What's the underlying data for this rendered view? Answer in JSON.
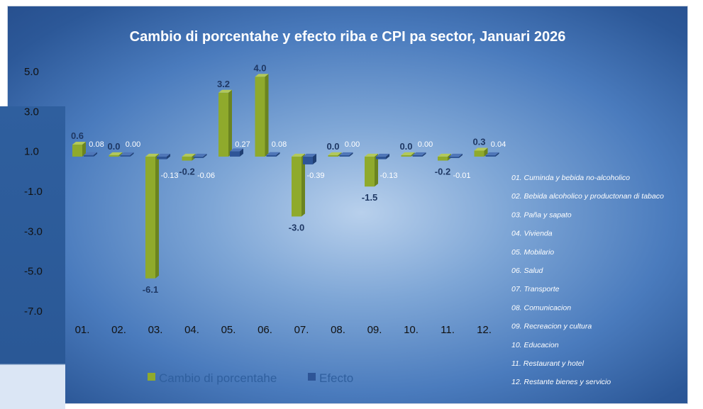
{
  "chart_data": {
    "type": "bar",
    "title": "Cambio di porcentahe y efecto riba e CPI pa sector, Januari 2026",
    "categories": [
      "01.",
      "02.",
      "03.",
      "04.",
      "05.",
      "06.",
      "07.",
      "08.",
      "09.",
      "10.",
      "11.",
      "12."
    ],
    "series": [
      {
        "name": "Cambio di porcentahe",
        "color": "#8faa2c",
        "values": [
          0.6,
          0.0,
          -6.1,
          -0.2,
          3.2,
          4.0,
          -3.0,
          0.0,
          -1.5,
          0.0,
          -0.2,
          0.3
        ],
        "labels": [
          "0.6",
          "0.0",
          "-6.1",
          "-0.2",
          "3.2",
          "4.0",
          "-3.0",
          "0.0",
          "-1.5",
          "0.0",
          "-0.2",
          "0.3"
        ]
      },
      {
        "name": "Efecto",
        "color": "#2e5597",
        "values": [
          0.08,
          0.0,
          -0.13,
          -0.06,
          0.27,
          0.08,
          -0.39,
          0.0,
          -0.13,
          0.0,
          -0.01,
          0.04
        ],
        "labels": [
          "0.08",
          "0.00",
          "-0.13",
          "-0.06",
          "0.27",
          "0.08",
          "-0.39",
          "0.00",
          "-0.13",
          "0.00",
          "-0.01",
          "0.04"
        ]
      }
    ],
    "yticks": [
      "5.0",
      "3.0",
      "1.0",
      "-1.0",
      "-3.0",
      "-5.0",
      "-7.0"
    ],
    "ylim": [
      -7.0,
      5.0
    ],
    "grid": false,
    "legend": "bottom",
    "sector_legend": [
      "01. Cuminda y bebida no-alcoholico",
      "02. Bebida alcoholico y productonan di tabaco",
      "03. Paña y sapato",
      "04. Vivienda",
      "05. Mobilario",
      "06. Salud",
      "07. Transporte",
      "08. Comunicacion",
      "09. Recreacion y cultura",
      "10. Educacion",
      "11. Restaurant y hotel",
      "12. Restante bienes y servicio"
    ]
  }
}
